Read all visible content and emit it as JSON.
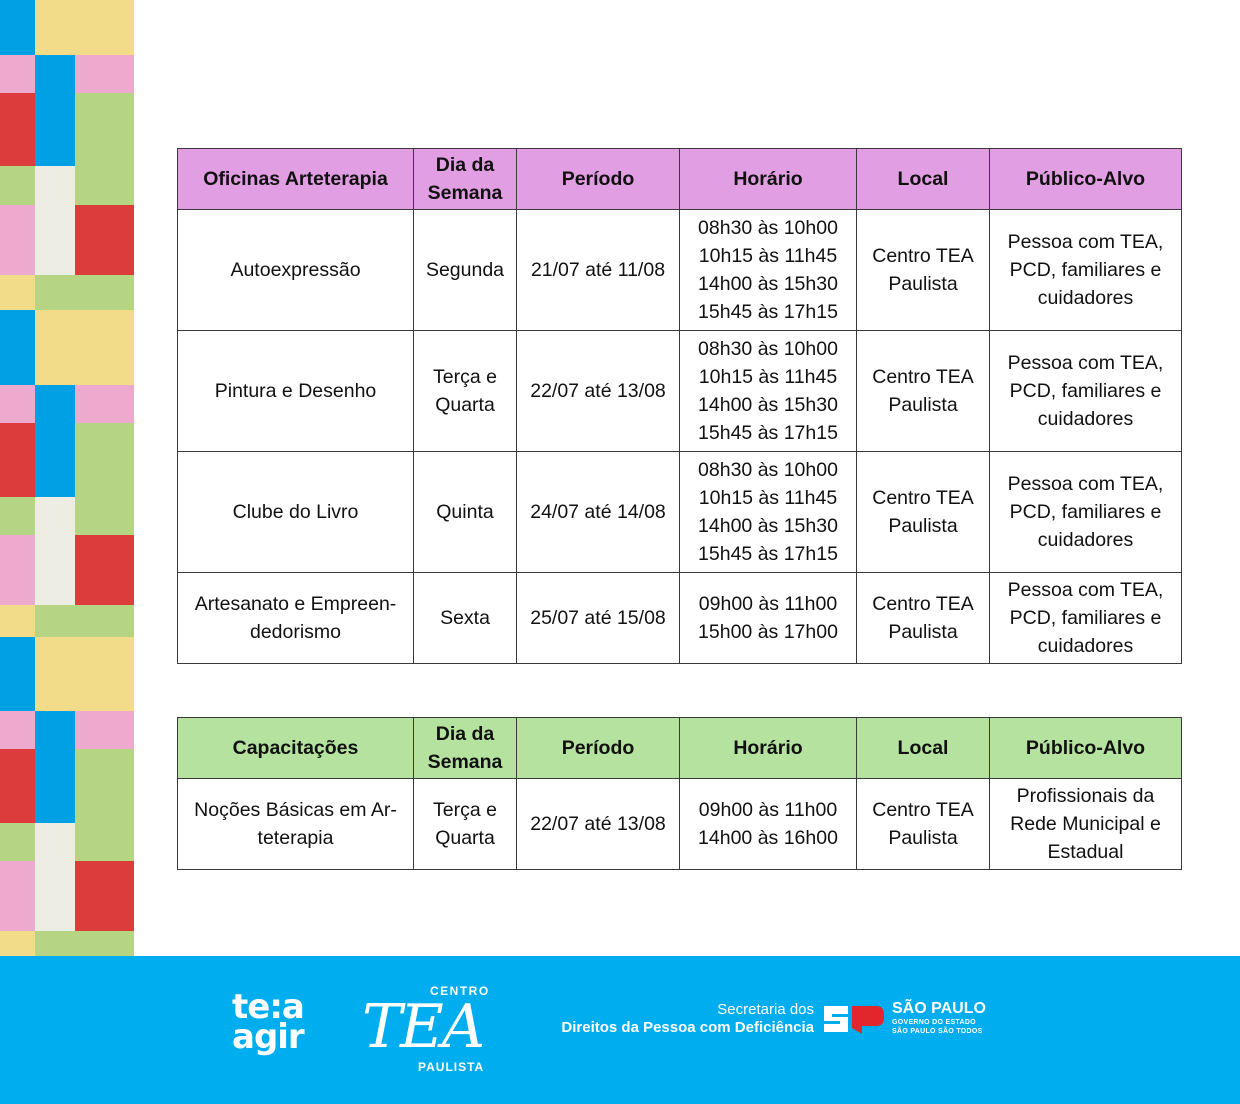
{
  "colors": {
    "header_purple": "#e29ee3",
    "header_green": "#b5e39f",
    "footer_blue": "#00adef",
    "mosaic": [
      "#00a0e4",
      "#f2dc8a",
      "#eea9cf",
      "#dc3c3c",
      "#b6d584",
      "#eeede4"
    ]
  },
  "table1": {
    "headers": [
      "Oficinas Arteterapia",
      "Dia da Semana",
      "Período",
      "Horário",
      "Local",
      "Público-Alvo"
    ],
    "rows": [
      {
        "name": "Autoexpressão",
        "day": "Segunda",
        "period": "21/07 até 11/08",
        "times": [
          "08h30 às 10h00",
          "10h15 às 11h45",
          "14h00 às 15h30",
          "15h45 às 17h15"
        ],
        "local": "Centro TEA Paulista",
        "audience": "Pessoa com TEA, PCD, familiares e cuidadores"
      },
      {
        "name": "Pintura e Desenho",
        "day": "Terça e Quarta",
        "period": "22/07 até 13/08",
        "times": [
          "08h30 às 10h00",
          "10h15 às 11h45",
          "14h00 às 15h30",
          "15h45 às 17h15"
        ],
        "local": "Centro TEA Paulista",
        "audience": "Pessoa com TEA, PCD, familiares e cuidadores"
      },
      {
        "name": "Clube do Livro",
        "day": "Quinta",
        "period": "24/07 até 14/08",
        "times": [
          "08h30 às 10h00",
          "10h15 às 11h45",
          "14h00 às 15h30",
          "15h45 às 17h15"
        ],
        "local": "Centro TEA Paulista",
        "audience": "Pessoa com TEA, PCD, familiares e cuidadores"
      },
      {
        "name": "Artesanato e Empreen-dedorismo",
        "day": "Sexta",
        "period": "25/07 até 15/08",
        "times": [
          "09h00 às 11h00",
          "15h00 às 17h00"
        ],
        "local": "Centro TEA Paulista",
        "audience": "Pessoa com TEA, PCD, familiares e cuidadores"
      }
    ]
  },
  "table2": {
    "headers": [
      "Capacitações",
      "Dia da Semana",
      "Período",
      "Horário",
      "Local",
      "Público-Alvo"
    ],
    "rows": [
      {
        "name": "Noções Básicas em Ar-teterapia",
        "day": "Terça e Quarta",
        "period": "22/07 até 13/08",
        "times": [
          "09h00 às 11h00",
          "14h00 às 16h00"
        ],
        "local": "Centro TEA Paulista",
        "audience": "Profissionais da Rede Municipal e Estadual"
      }
    ]
  },
  "footer": {
    "logo_tea_agir": [
      "te:a",
      "agir"
    ],
    "logo_centro_tea": {
      "top": "CENTRO",
      "main": "TEA",
      "bottom": "PAULISTA"
    },
    "secretaria": {
      "line1": "Secretaria dos",
      "line2": "Direitos da Pessoa com Deficiência"
    },
    "sp": {
      "name": "SÃO PAULO",
      "line2": "GOVERNO DO ESTADO",
      "line3": "SÃO PAULO SÃO TODOS"
    }
  }
}
